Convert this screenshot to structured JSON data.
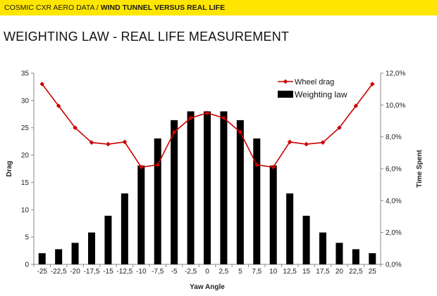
{
  "banner": {
    "prefix": "COSMIC CXR AERO DATA / ",
    "emphasis": "WIND TUNNEL VERSUS REAL LIFE",
    "background": "#ffe600"
  },
  "page_title": "WEIGHTING LAW - REAL LIFE MEASUREMENT",
  "chart_data": {
    "type": "bar",
    "categories": [
      "-25",
      "-22,5",
      "-20",
      "-17,5",
      "-15",
      "-12,5",
      "-10",
      "-7,5",
      "-5",
      "-2,5",
      "0",
      "2,5",
      "5",
      "7,5",
      "10",
      "12,5",
      "15",
      "17,5",
      "20",
      "22,5",
      "25"
    ],
    "xlabel": "Yaw Angle",
    "ylabel_left": "Drag",
    "ylabel_right": "Time Spent",
    "ylim_left": [
      0,
      35
    ],
    "ylim_right": [
      0,
      12
    ],
    "yticks_left": [
      "0",
      "5",
      "10",
      "15",
      "20",
      "25",
      "30",
      "35"
    ],
    "yticks_right": [
      "0,0%",
      "2,0%",
      "4,0%",
      "6,0%",
      "8,0%",
      "10,0%",
      "12,0%"
    ],
    "legend_position": "top-right",
    "series": [
      {
        "name": "Weighting law",
        "type": "bar",
        "axis": "right",
        "unit": "%",
        "color": "#000000",
        "values": [
          0.7,
          0.95,
          1.35,
          2.0,
          3.05,
          4.45,
          6.2,
          7.9,
          9.05,
          9.6,
          9.6,
          9.6,
          9.05,
          7.9,
          6.2,
          4.45,
          3.05,
          2.0,
          1.35,
          0.95,
          0.7
        ]
      },
      {
        "name": "Wheel drag",
        "type": "line",
        "axis": "left",
        "color": "#cc0000",
        "values": [
          33,
          29,
          25,
          22.3,
          22,
          22.4,
          17.8,
          18.2,
          24.2,
          26.8,
          27.7,
          26.8,
          24.2,
          18.2,
          17.8,
          22.4,
          22,
          22.3,
          25,
          29,
          33
        ]
      }
    ]
  }
}
